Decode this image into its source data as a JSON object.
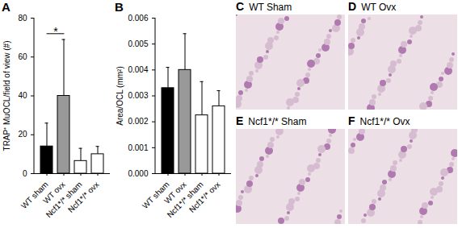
{
  "chart_data": [
    {
      "type": "bar",
      "panel": "A",
      "ylabel": "TRAP⁺ MuOCL/field of view (#)",
      "categories": [
        "WT sham",
        "WT ovx",
        "Ncf1*/* sham",
        "Ncf1*/* ovx"
      ],
      "values": [
        14,
        40,
        6.5,
        10
      ],
      "errors": [
        12,
        29,
        6.5,
        4
      ],
      "colors": [
        "#000000",
        "#999999",
        "#ffffff",
        "#ffffff"
      ],
      "ylim": [
        0,
        80
      ],
      "yticks": [
        0,
        20,
        40,
        60,
        80
      ],
      "annotations": [
        {
          "text": "*",
          "from": "WT sham",
          "to": "WT ovx",
          "y": 72
        }
      ]
    },
    {
      "type": "bar",
      "panel": "B",
      "ylabel": "Area/OCL (mm²)",
      "categories": [
        "WT sham",
        "WT ovx",
        "Ncf1*/* sham",
        "Ncf1*/* ovx"
      ],
      "values": [
        0.0033,
        0.004,
        0.00225,
        0.0026
      ],
      "errors": [
        0.0008,
        0.0014,
        0.0013,
        0.0006
      ],
      "colors": [
        "#000000",
        "#999999",
        "#ffffff",
        "#ffffff"
      ],
      "ylim": [
        0,
        0.006
      ],
      "yticks": [
        {
          "value": 0,
          "label": "0.000"
        },
        {
          "value": 0.001,
          "label": "0.001"
        },
        {
          "value": 0.002,
          "label": "0.002"
        },
        {
          "value": 0.003,
          "label": "0.003"
        },
        {
          "value": 0.004,
          "label": "0.004"
        },
        {
          "value": 0.005,
          "label": "0.005"
        },
        {
          "value": 0.006,
          "label": "0.006"
        }
      ]
    }
  ],
  "image_panels": [
    {
      "panel": "C",
      "title": "WT Sham"
    },
    {
      "panel": "D",
      "title": "WT Ovx"
    },
    {
      "panel": "E",
      "title": "Ncf1*/* Sham"
    },
    {
      "panel": "F",
      "title": "Ncf1*/* Ovx"
    }
  ]
}
